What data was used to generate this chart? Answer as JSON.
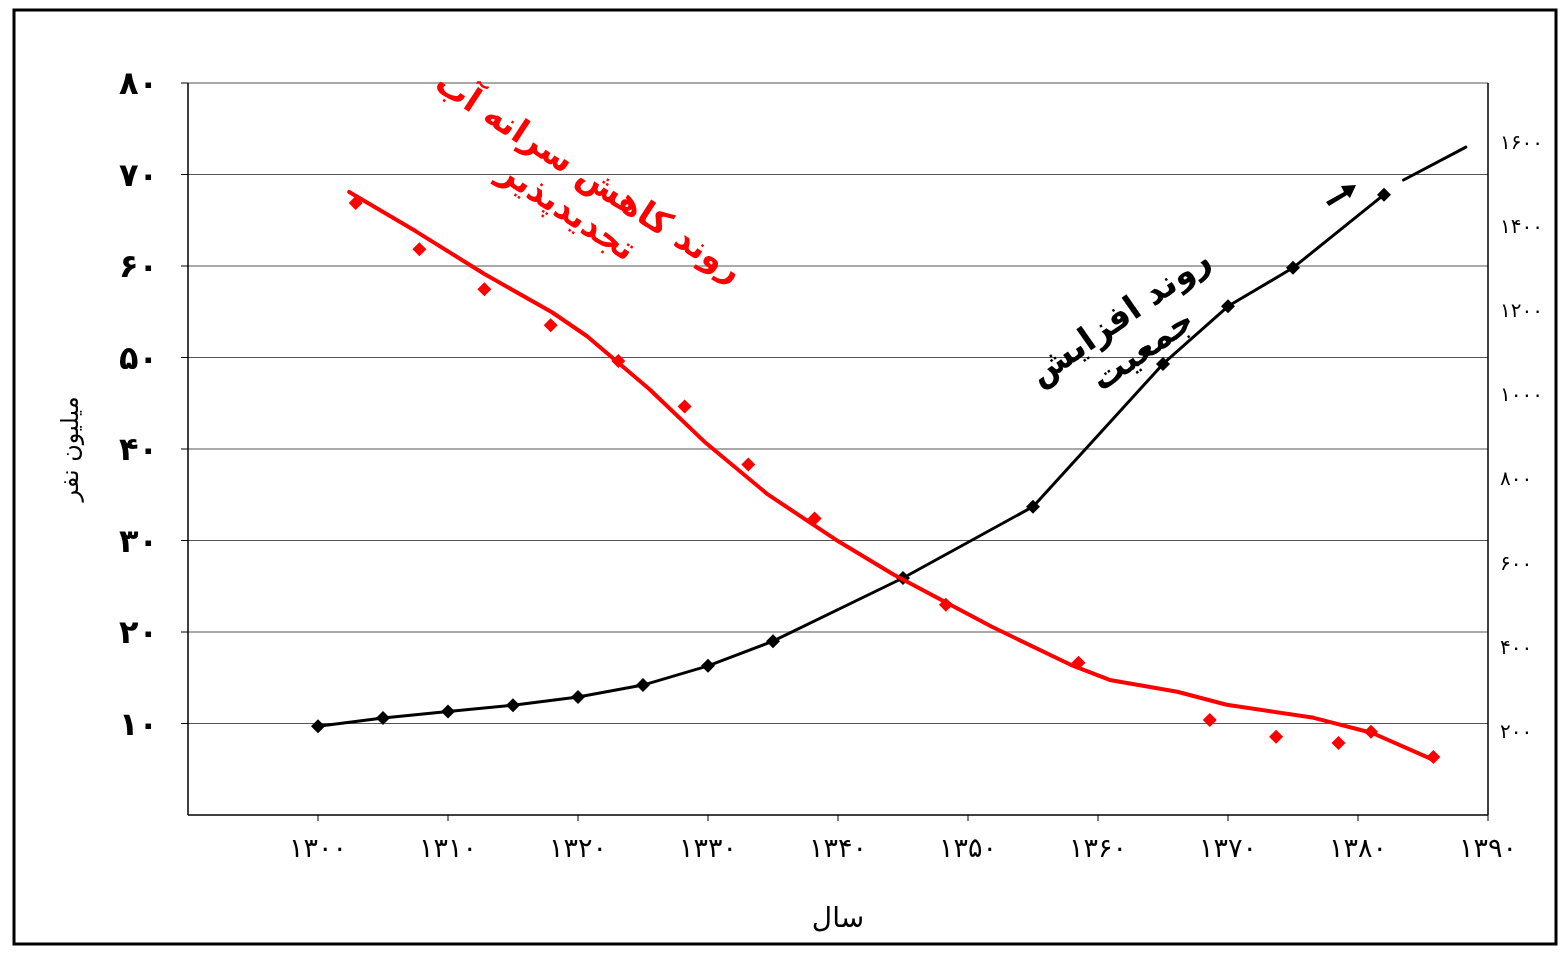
{
  "chart_data": {
    "type": "line",
    "xlabel": "سال",
    "ylabel": "میلیون نفر",
    "xlim": [
      1290,
      1390
    ],
    "xticks": [
      {
        "value": 1300,
        "label": "۱۳۰۰"
      },
      {
        "value": 1310,
        "label": "۱۳۱۰"
      },
      {
        "value": 1320,
        "label": "۱۳۲۰"
      },
      {
        "value": 1330,
        "label": "۱۳۳۰"
      },
      {
        "value": 1340,
        "label": "۱۳۴۰"
      },
      {
        "value": 1350,
        "label": "۱۳۵۰"
      },
      {
        "value": 1360,
        "label": "۱۳۶۰"
      },
      {
        "value": 1370,
        "label": "۱۳۷۰"
      },
      {
        "value": 1380,
        "label": "۱۳۸۰"
      },
      {
        "value": 1390,
        "label": "۱۳۹۰"
      }
    ],
    "ylim": [
      0,
      80
    ],
    "yticks": [
      {
        "value": 10,
        "label": "۱۰"
      },
      {
        "value": 20,
        "label": "۲۰"
      },
      {
        "value": 30,
        "label": "۳۰"
      },
      {
        "value": 40,
        "label": "۴۰"
      },
      {
        "value": 50,
        "label": "۵۰"
      },
      {
        "value": 60,
        "label": "۶۰"
      },
      {
        "value": 70,
        "label": "۷۰"
      },
      {
        "value": 80,
        "label": "۸۰"
      }
    ],
    "y2lim": [
      0,
      1740
    ],
    "y2ticks": [
      {
        "value": 200,
        "label": "۲۰۰"
      },
      {
        "value": 400,
        "label": "۴۰۰"
      },
      {
        "value": 600,
        "label": "۶۰۰"
      },
      {
        "value": 800,
        "label": "۸۰۰"
      },
      {
        "value": 1000,
        "label": "۱۰۰۰"
      },
      {
        "value": 1200,
        "label": "۱۲۰۰"
      },
      {
        "value": 1400,
        "label": "۱۴۰۰"
      },
      {
        "value": 1600,
        "label": "۱۶۰۰"
      }
    ],
    "grid": "y",
    "line_style": "solid",
    "annotations": [
      "روند کاهش سرانه آب\nتجدیدپذیر",
      "روند افزایش\nجمعیت"
    ],
    "series": [
      {
        "color": "#000000",
        "marker": "diamond",
        "x": [
          1300,
          1305,
          1310,
          1315,
          1320,
          1325,
          1330,
          1335,
          1345,
          1355,
          1365,
          1370,
          1375,
          1382
        ],
        "values": [
          9.7,
          10.6,
          11.3,
          12.0,
          12.9,
          14.2,
          16.3,
          19.0,
          25.9,
          33.7,
          49.3,
          55.6,
          59.8,
          67.8
        ]
      },
      {
        "color": "#000000",
        "marker": "none",
        "x": [
          1383.5,
          1388.3
        ],
        "values": [
          69.4,
          73.0
        ]
      },
      {
        "type": "scatter",
        "axis": "y2",
        "color": "#ff0000",
        "marker": "diamond",
        "x": [
          1302.9,
          1307.8,
          1312.8,
          1317.9,
          1323.1,
          1328.2,
          1333.1,
          1338.2,
          1348.3,
          1358.5,
          1368.6,
          1373.7,
          1378.5,
          1381,
          1385.8
        ],
        "values": [
          1455,
          1345,
          1250,
          1164,
          1079,
          971,
          833,
          705,
          500,
          362,
          226,
          186,
          171,
          198,
          138
        ]
      },
      {
        "axis": "y2",
        "color": "#ff0000",
        "marker": "none",
        "x": [
          1302.4,
          1307.5,
          1312.8,
          1318,
          1320.7,
          1325.5,
          1329.7,
          1334.6,
          1339.8,
          1344.3,
          1351.8,
          1357.9,
          1360.9,
          1366.1,
          1369.9,
          1376.6,
          1381.1,
          1385.8
        ],
        "values": [
          1481,
          1388,
          1286,
          1195,
          1138,
          1012,
          888,
          762,
          655,
          571,
          448,
          357,
          321,
          293,
          262,
          231,
          195,
          131
        ]
      }
    ]
  }
}
